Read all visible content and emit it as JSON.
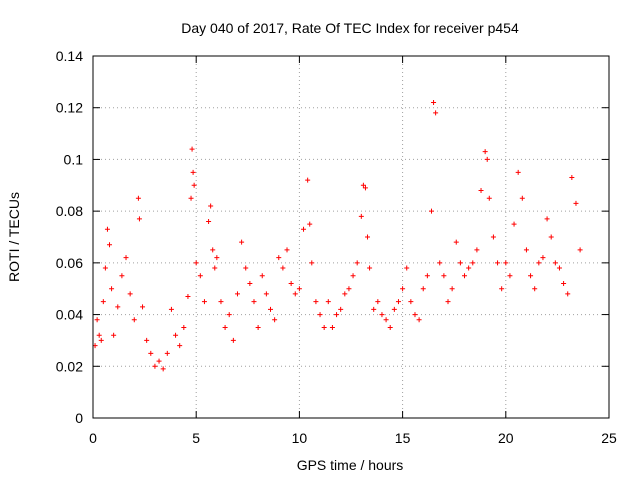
{
  "chart_data": {
    "type": "scatter",
    "title": "Day 040 of 2017, Rate Of TEC Index for receiver p454",
    "xlabel": "GPS time / hours",
    "ylabel": "ROTI / TECUs",
    "xlim": [
      0,
      25
    ],
    "ylim": [
      0,
      0.14
    ],
    "xticks": [
      0,
      5,
      10,
      15,
      20,
      25
    ],
    "xtick_labels": [
      "0",
      "5",
      "10",
      "15",
      "20",
      "25"
    ],
    "yticks": [
      0,
      0.02,
      0.04,
      0.06,
      0.08,
      0.1,
      0.12,
      0.14
    ],
    "ytick_labels": [
      "0",
      "0.02",
      "0.04",
      "0.06",
      "0.08",
      "0.1",
      "0.12",
      "0.14"
    ],
    "grid": true,
    "marker": "+",
    "color": "#ff0000",
    "series": [
      {
        "name": "ROTI",
        "x": [
          0.1,
          0.2,
          0.3,
          0.4,
          0.5,
          0.6,
          0.7,
          0.8,
          0.9,
          1.0,
          1.2,
          1.4,
          1.6,
          1.8,
          2.0,
          2.2,
          2.25,
          2.4,
          2.6,
          2.8,
          3.0,
          3.2,
          3.4,
          3.6,
          3.8,
          4.0,
          4.2,
          4.4,
          4.6,
          4.75,
          4.8,
          4.85,
          4.9,
          5.0,
          5.2,
          5.4,
          5.6,
          5.7,
          5.8,
          5.9,
          6.0,
          6.2,
          6.4,
          6.6,
          6.8,
          7.0,
          7.2,
          7.4,
          7.6,
          7.8,
          8.0,
          8.2,
          8.4,
          8.6,
          8.8,
          9.0,
          9.2,
          9.4,
          9.6,
          9.8,
          10.0,
          10.2,
          10.4,
          10.5,
          10.6,
          10.8,
          11.0,
          11.2,
          11.4,
          11.6,
          11.8,
          12.0,
          12.2,
          12.4,
          12.6,
          12.8,
          13.0,
          13.1,
          13.2,
          13.3,
          13.4,
          13.6,
          13.8,
          14.0,
          14.2,
          14.4,
          14.6,
          14.8,
          15.0,
          15.2,
          15.4,
          15.6,
          15.8,
          16.0,
          16.2,
          16.4,
          16.5,
          16.6,
          16.8,
          17.0,
          17.2,
          17.4,
          17.6,
          17.8,
          18.0,
          18.2,
          18.4,
          18.6,
          18.8,
          19.0,
          19.1,
          19.2,
          19.4,
          19.6,
          19.8,
          20.0,
          20.2,
          20.4,
          20.6,
          20.8,
          21.0,
          21.2,
          21.4,
          21.6,
          21.8,
          22.0,
          22.2,
          22.4,
          22.6,
          22.8,
          23.0,
          23.2,
          23.4,
          23.6
        ],
        "y": [
          0.028,
          0.038,
          0.032,
          0.03,
          0.045,
          0.058,
          0.073,
          0.067,
          0.05,
          0.032,
          0.043,
          0.055,
          0.062,
          0.048,
          0.038,
          0.085,
          0.077,
          0.043,
          0.03,
          0.025,
          0.02,
          0.022,
          0.019,
          0.025,
          0.042,
          0.032,
          0.028,
          0.035,
          0.047,
          0.085,
          0.104,
          0.095,
          0.09,
          0.06,
          0.055,
          0.045,
          0.076,
          0.082,
          0.065,
          0.058,
          0.062,
          0.045,
          0.035,
          0.04,
          0.03,
          0.048,
          0.068,
          0.058,
          0.052,
          0.045,
          0.035,
          0.055,
          0.048,
          0.042,
          0.038,
          0.062,
          0.058,
          0.065,
          0.052,
          0.048,
          0.05,
          0.073,
          0.092,
          0.075,
          0.06,
          0.045,
          0.04,
          0.035,
          0.045,
          0.035,
          0.04,
          0.042,
          0.048,
          0.05,
          0.055,
          0.06,
          0.078,
          0.09,
          0.089,
          0.07,
          0.058,
          0.042,
          0.045,
          0.04,
          0.038,
          0.035,
          0.042,
          0.045,
          0.05,
          0.058,
          0.045,
          0.04,
          0.038,
          0.05,
          0.055,
          0.08,
          0.122,
          0.118,
          0.06,
          0.055,
          0.045,
          0.05,
          0.068,
          0.06,
          0.055,
          0.058,
          0.06,
          0.065,
          0.088,
          0.103,
          0.1,
          0.085,
          0.07,
          0.06,
          0.05,
          0.06,
          0.055,
          0.075,
          0.095,
          0.085,
          0.065,
          0.055,
          0.05,
          0.06,
          0.062,
          0.077,
          0.07,
          0.06,
          0.058,
          0.052,
          0.048,
          0.093,
          0.083,
          0.065
        ]
      }
    ]
  }
}
